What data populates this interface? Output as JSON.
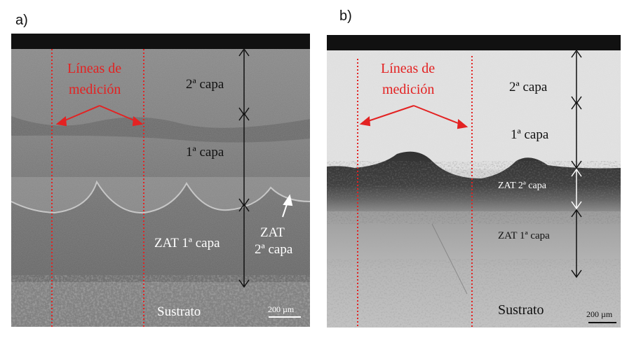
{
  "panels": [
    {
      "label": "a)",
      "measure_label": [
        "Líneas de",
        "medición"
      ],
      "layers": {
        "second": "2ª capa",
        "first": "1ª capa",
        "haz_first": "ZAT 1ª capa",
        "haz_second": [
          "ZAT",
          "2ª capa"
        ],
        "substrate": "Sustrato"
      },
      "scale_bar": "200 µm"
    },
    {
      "label": "b)",
      "measure_label": [
        "Líneas de",
        "medición"
      ],
      "layers": {
        "second": "2ª capa",
        "first": "1ª capa",
        "haz_second": "ZAT 2ª capa",
        "haz_first": "ZAT 1ª capa",
        "substrate": "Sustrato"
      },
      "scale_bar": "200 µm"
    }
  ],
  "colors": {
    "measure_line": "#e32222",
    "annotation_dark": "#111111",
    "annotation_light": "#ffffff"
  }
}
